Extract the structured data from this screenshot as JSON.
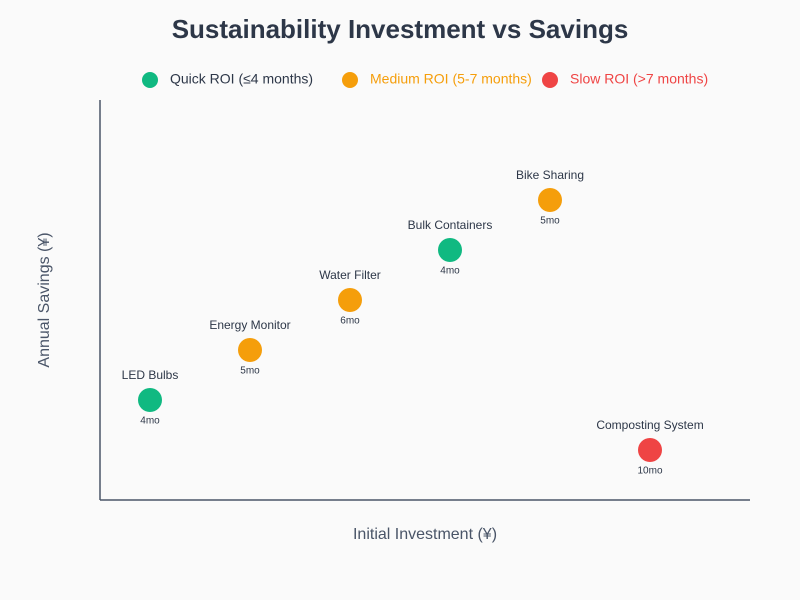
{
  "chart_data": {
    "type": "scatter",
    "title": "Sustainability Investment vs Savings",
    "x_label": "Initial Investment (¥)",
    "y_label": "Annual Savings (¥)",
    "xlim": [
      0,
      13
    ],
    "ylim": [
      0,
      8
    ],
    "series": [
      {
        "name": "Quick ROI (≤4 months)",
        "color": "#10b981",
        "legend_text_color": "#2d3748",
        "labels": [
          "LED Bulbs",
          "Bulk Containers"
        ],
        "x": [
          1,
          7
        ],
        "values": [
          2,
          5
        ],
        "payback": [
          "4mo",
          "4mo"
        ]
      },
      {
        "name": "Medium ROI (5-7 months)",
        "color": "#f59e0b",
        "legend_text_color": "#f59e0b",
        "labels": [
          "Energy Monitor",
          "Water Filter",
          "Bike Sharing"
        ],
        "x": [
          3,
          5,
          9
        ],
        "values": [
          3,
          4,
          6
        ],
        "payback": [
          "5mo",
          "6mo",
          "5mo"
        ]
      },
      {
        "name": "Slow ROI (>7 months)",
        "color": "#ef4444",
        "legend_text_color": "#ef4444",
        "labels": [
          "Composting System"
        ],
        "x": [
          11
        ],
        "values": [
          1
        ],
        "payback": [
          "10mo"
        ]
      }
    ]
  }
}
